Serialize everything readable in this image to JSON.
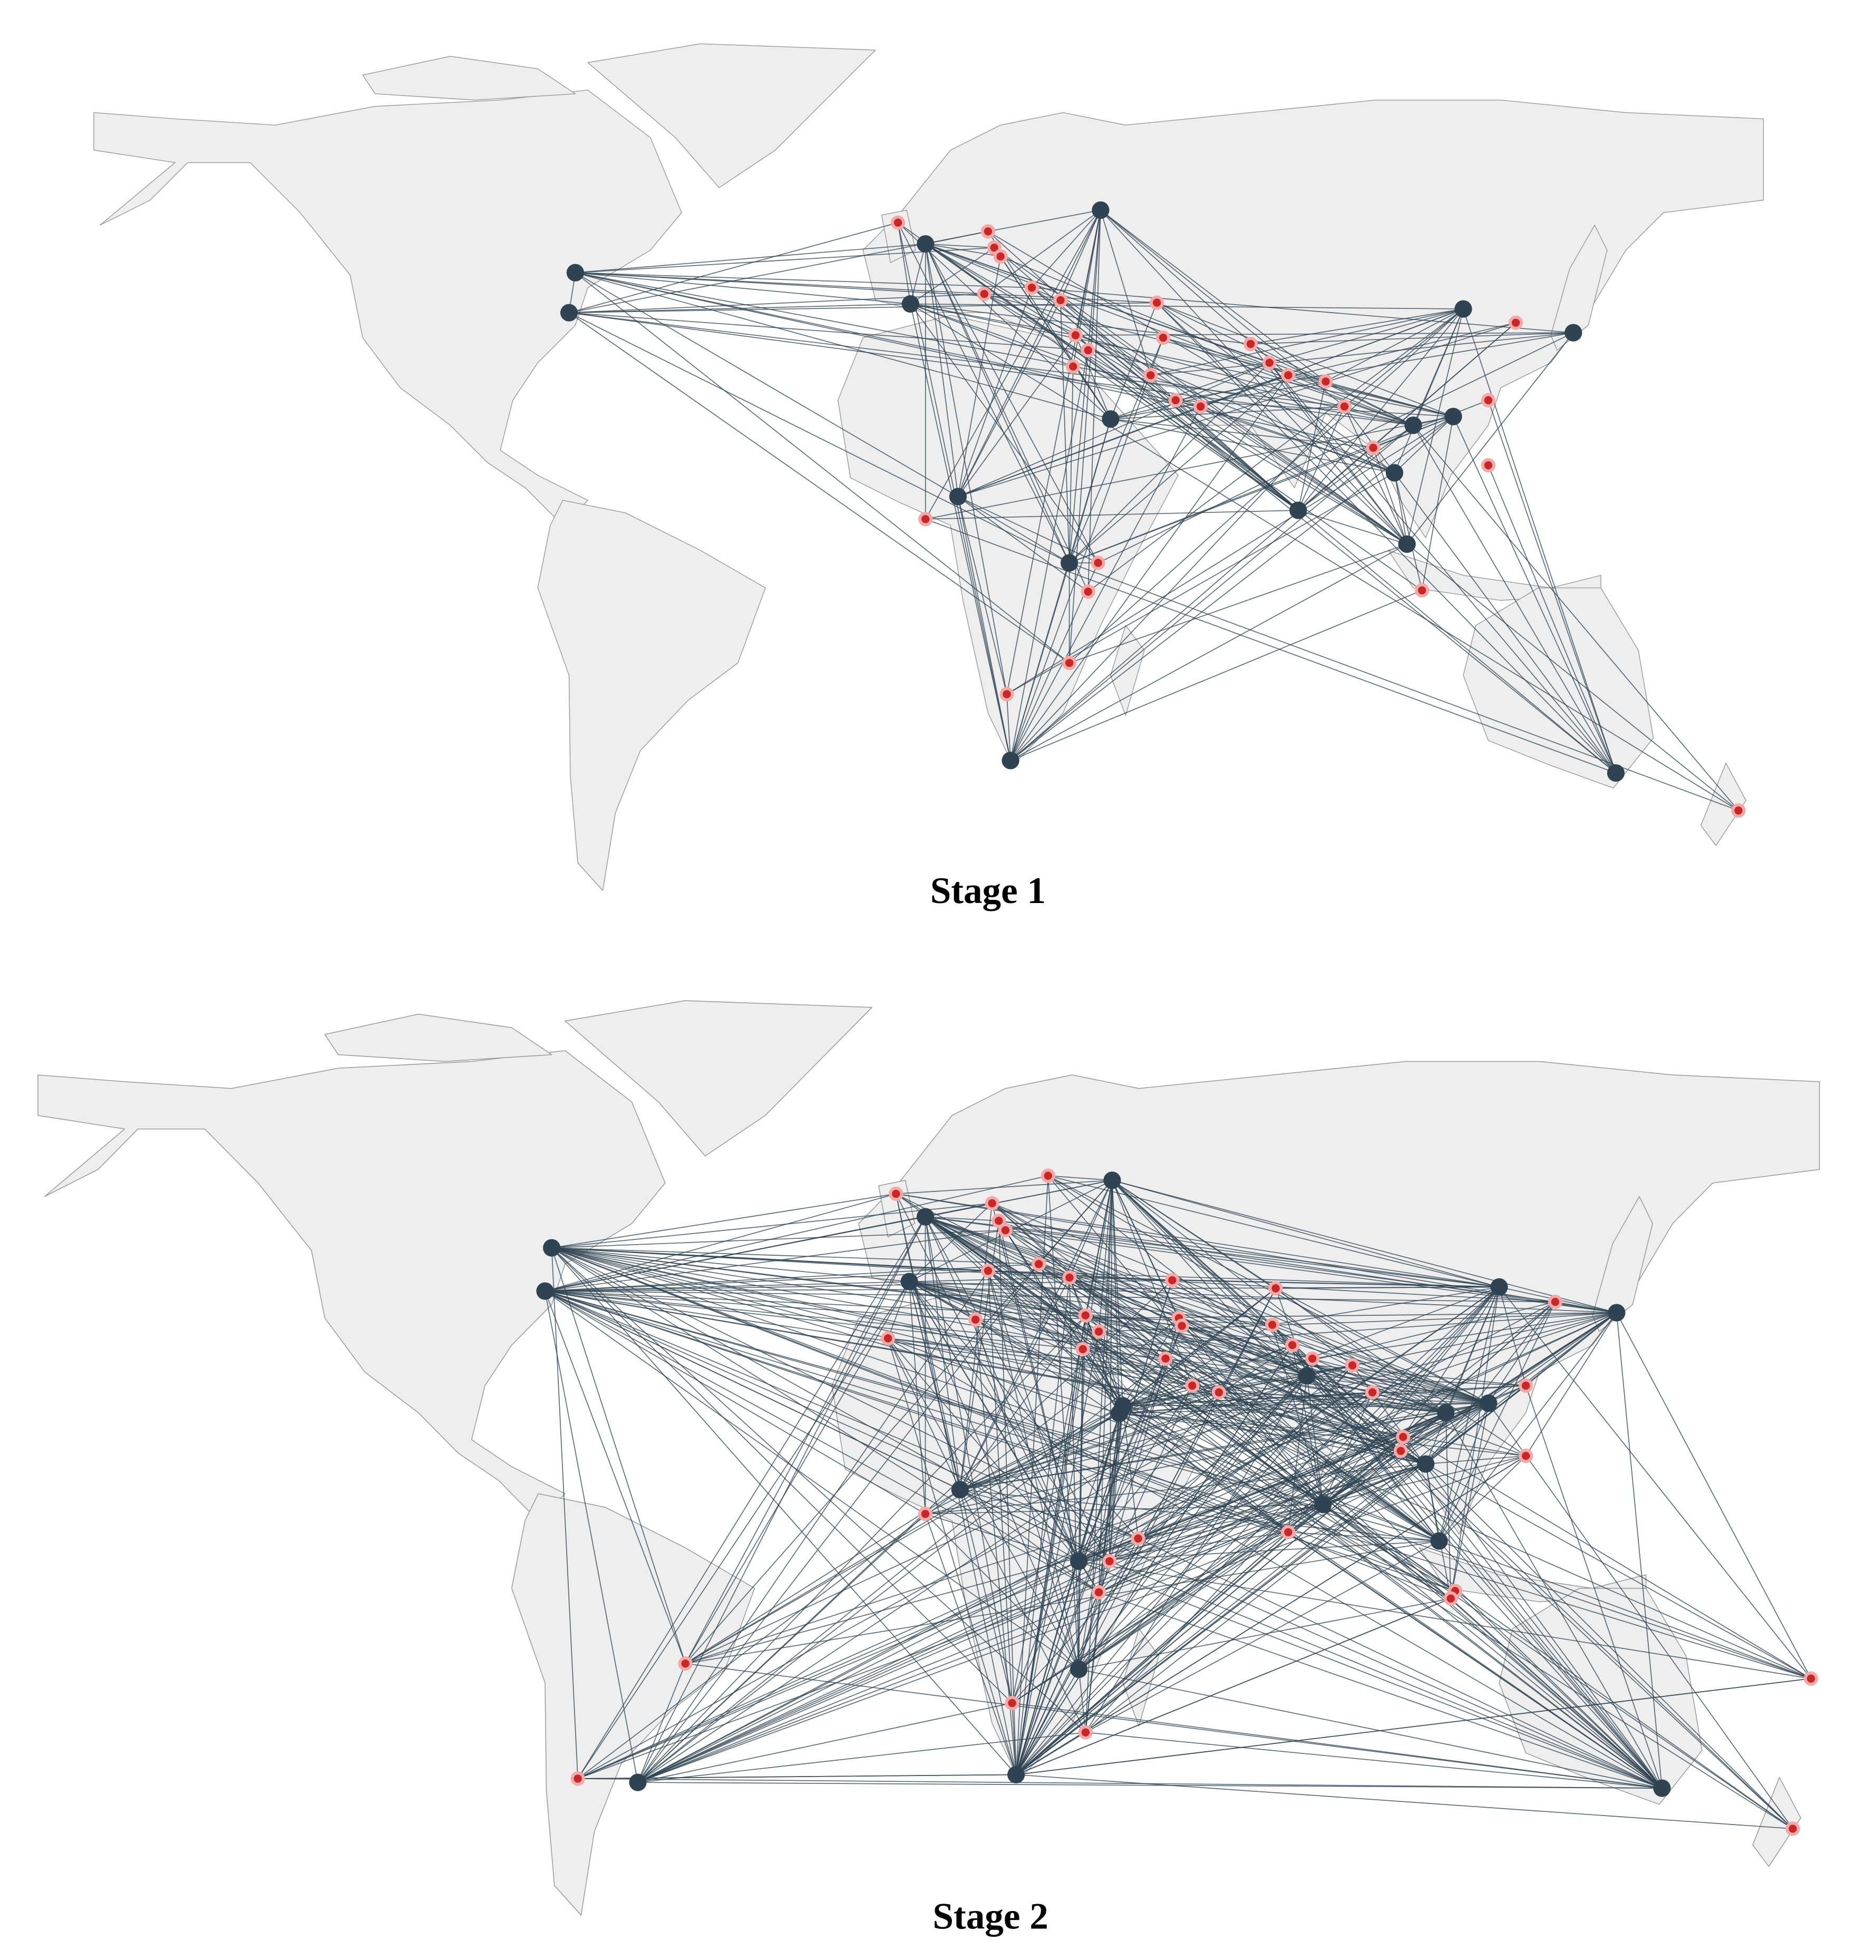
{
  "panels": [
    {
      "title": "Stage 1"
    },
    {
      "title": "Stage 2"
    }
  ]
}
